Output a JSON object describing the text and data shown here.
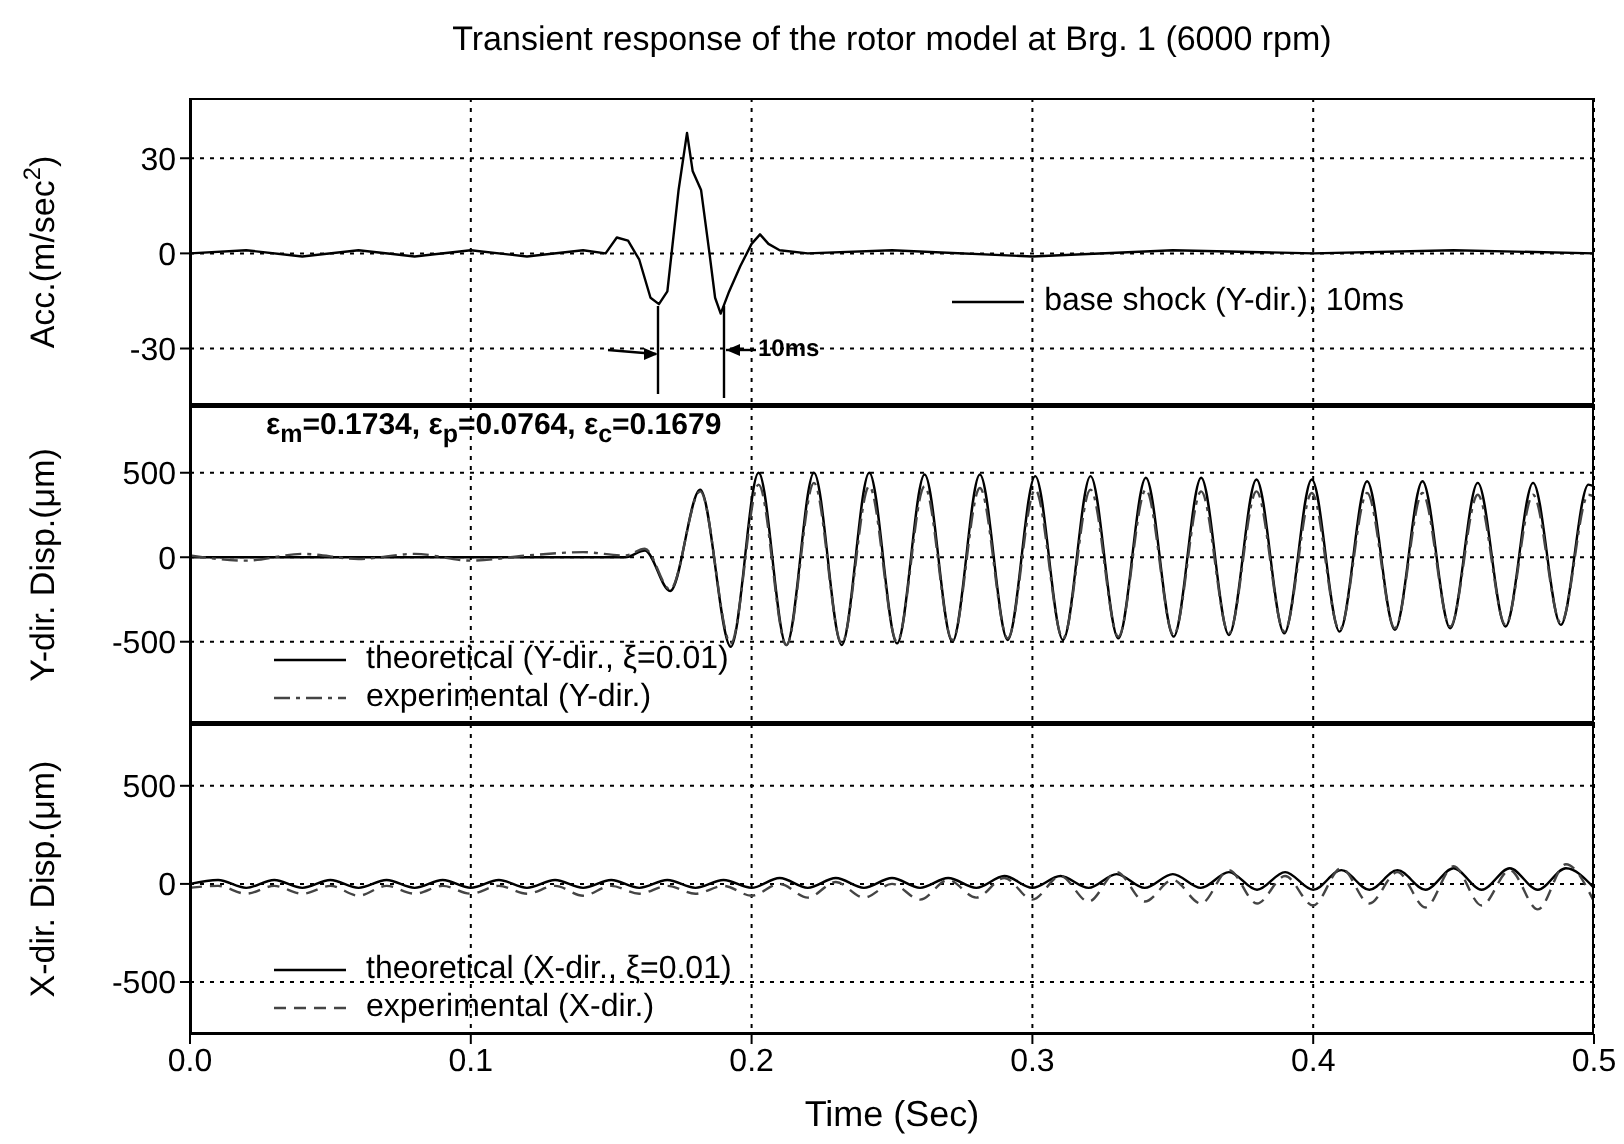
{
  "chart_data": [
    {
      "type": "line",
      "title": "Transient response of the rotor model at Brg. 1 (6000 rpm)",
      "ylabel": "Acc.(m/sec$^{2}$)",
      "x": [
        0,
        0.02,
        0.04,
        0.06,
        0.08,
        0.1,
        0.12,
        0.14,
        0.148,
        0.152,
        0.156,
        0.16,
        0.164,
        0.167,
        0.17,
        0.174,
        0.177,
        0.179,
        0.182,
        0.185,
        0.187,
        0.189,
        0.192,
        0.196,
        0.2,
        0.203,
        0.206,
        0.21,
        0.22,
        0.25,
        0.3,
        0.35,
        0.4,
        0.45,
        0.5
      ],
      "series": [
        {
          "name": "base shock (Y-dir.), 10ms",
          "color": "#000000",
          "line_style": "solid",
          "values": [
            0,
            1,
            -1,
            1,
            -1,
            1,
            -1,
            1,
            0,
            5,
            4,
            -2,
            -14,
            -16,
            -12,
            20,
            38,
            26,
            20,
            0,
            -14,
            -19,
            -12,
            -4,
            3,
            6,
            3,
            1,
            0,
            1,
            -1,
            1,
            0,
            1,
            0
          ]
        }
      ],
      "annotations": [
        "10ms"
      ],
      "xlim": [
        0,
        0.5
      ],
      "xticks": [
        0,
        0.1,
        0.2,
        0.3,
        0.4,
        0.5
      ],
      "ylim": [
        -47.5,
        49
      ],
      "yticks": [
        -30,
        0,
        30
      ],
      "tick_labels": "y",
      "grid": true,
      "legend": "bottom right",
      "marker": "none"
    },
    {
      "type": "line",
      "ylabel": "Y-dir. Disp.(μm)",
      "annotations": [
        "ε$_{m}$=0.1734, ε$_{p}$=0.0764, ε$_{c}$=0.1679"
      ],
      "x": [
        0,
        0.02,
        0.04,
        0.06,
        0.08,
        0.1,
        0.12,
        0.14,
        0.155,
        0.162,
        0.171,
        0.1817,
        0.1926,
        0.2025,
        0.2124,
        0.2222,
        0.2321,
        0.2419,
        0.2518,
        0.2616,
        0.2715,
        0.2813,
        0.2912,
        0.301,
        0.3109,
        0.3207,
        0.3306,
        0.3404,
        0.3503,
        0.3601,
        0.37,
        0.3798,
        0.3897,
        0.3995,
        0.4094,
        0.4192,
        0.4291,
        0.4389,
        0.4488,
        0.4586,
        0.4685,
        0.4783,
        0.4882,
        0.498,
        0.5
      ],
      "series": [
        {
          "name": "theoretical (Y-dir., ξ=0.01)",
          "color": "#000000",
          "line_style": "solid",
          "values": [
            0,
            0,
            0,
            0,
            0,
            0,
            0,
            0,
            0,
            40,
            -200,
            400,
            -530,
            500,
            -520,
            500,
            -520,
            500,
            -510,
            490,
            -500,
            490,
            -490,
            480,
            -490,
            480,
            -480,
            470,
            -470,
            470,
            -460,
            460,
            -450,
            460,
            -440,
            450,
            -430,
            450,
            -420,
            440,
            -410,
            440,
            -400,
            430,
            420
          ]
        },
        {
          "name": "experimental (Y-dir.)",
          "color": "#444444",
          "line_style": "dashdot",
          "values": [
            10,
            -20,
            20,
            -10,
            20,
            -20,
            10,
            30,
            10,
            50,
            -190,
            390,
            -510,
            430,
            -520,
            440,
            -510,
            420,
            -500,
            420,
            -490,
            410,
            -480,
            400,
            -480,
            400,
            -470,
            400,
            -460,
            390,
            -450,
            390,
            -440,
            380,
            -430,
            380,
            -420,
            380,
            -410,
            370,
            -400,
            370,
            -390,
            370,
            360
          ]
        }
      ],
      "xlim": [
        0,
        0.5
      ],
      "xticks": [
        0,
        0.1,
        0.2,
        0.3,
        0.4,
        0.5
      ],
      "ylim": [
        -975,
        895
      ],
      "yticks": [
        -500,
        0,
        500
      ],
      "tick_labels": "y",
      "grid": true,
      "legend": "bottom left",
      "marker": "none"
    },
    {
      "type": "line",
      "ylabel": "X-dir. Disp.(μm)",
      "xlabel": "Time (Sec)",
      "x": [
        0,
        0.01,
        0.02,
        0.03,
        0.04,
        0.05,
        0.06,
        0.07,
        0.08,
        0.09,
        0.1,
        0.11,
        0.12,
        0.13,
        0.14,
        0.15,
        0.16,
        0.17,
        0.18,
        0.19,
        0.2,
        0.21,
        0.22,
        0.23,
        0.24,
        0.25,
        0.26,
        0.27,
        0.28,
        0.29,
        0.3,
        0.31,
        0.32,
        0.33,
        0.34,
        0.35,
        0.36,
        0.37,
        0.38,
        0.39,
        0.4,
        0.41,
        0.42,
        0.43,
        0.44,
        0.45,
        0.46,
        0.47,
        0.48,
        0.49,
        0.5
      ],
      "series": [
        {
          "name": "theoretical (X-dir., ξ=0.01)",
          "color": "#000000",
          "line_style": "solid",
          "values": [
            0,
            20,
            -20,
            20,
            -20,
            20,
            -20,
            20,
            -20,
            20,
            -20,
            20,
            -20,
            20,
            -20,
            20,
            -20,
            20,
            -20,
            20,
            -20,
            30,
            -20,
            30,
            -20,
            30,
            -20,
            30,
            -20,
            40,
            -20,
            40,
            -20,
            50,
            -20,
            50,
            -20,
            60,
            -30,
            60,
            -30,
            70,
            -30,
            70,
            -30,
            80,
            -30,
            80,
            -30,
            80,
            -20
          ]
        },
        {
          "name": "experimental (X-dir.)",
          "color": "#444444",
          "line_style": "dashed",
          "values": [
            -20,
            -10,
            -50,
            -10,
            -50,
            -10,
            -60,
            -10,
            -50,
            -10,
            -50,
            -10,
            -50,
            -10,
            -60,
            -10,
            -50,
            -10,
            -50,
            -10,
            -60,
            0,
            -70,
            10,
            -70,
            0,
            -80,
            20,
            -70,
            30,
            -80,
            40,
            -90,
            60,
            -90,
            20,
            -100,
            70,
            -100,
            40,
            -110,
            80,
            -100,
            60,
            -120,
            90,
            -110,
            70,
            -130,
            100,
            -90
          ]
        }
      ],
      "xlim": [
        0,
        0.5
      ],
      "xticks": [
        {
          "value": 0,
          "label": "0.0"
        },
        0.1,
        0.2,
        0.3,
        0.4,
        0.5
      ],
      "ylim": [
        -765,
        815
      ],
      "yticks": [
        -500,
        0,
        500
      ],
      "grid": true,
      "legend": "bottom left",
      "marker": "none"
    }
  ]
}
